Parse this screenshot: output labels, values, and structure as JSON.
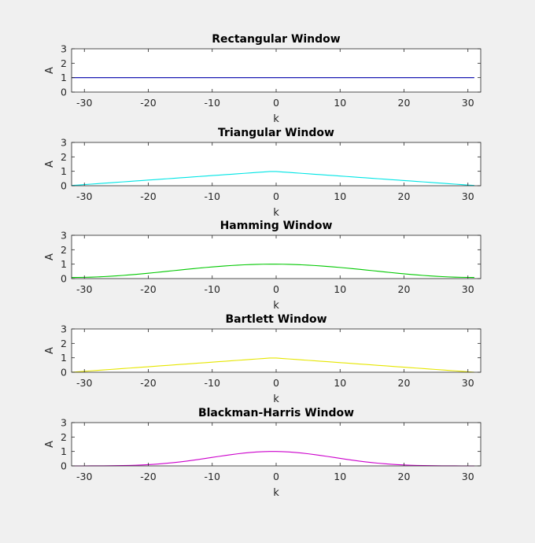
{
  "chart_data": [
    {
      "type": "line",
      "title": "Rectangular Window",
      "xlabel": "k",
      "ylabel": "A",
      "xlim": [
        -32,
        32
      ],
      "ylim": [
        0,
        3
      ],
      "xticks": [
        -30,
        -20,
        -10,
        0,
        10,
        20,
        30
      ],
      "yticks": [
        0,
        1,
        2,
        3
      ],
      "grid": false,
      "color": "#0000aa",
      "window": "rectangular",
      "N": 64
    },
    {
      "type": "line",
      "title": "Triangular Window",
      "xlabel": "k",
      "ylabel": "A",
      "xlim": [
        -32,
        32
      ],
      "ylim": [
        0,
        3
      ],
      "xticks": [
        -30,
        -20,
        -10,
        0,
        10,
        20,
        30
      ],
      "yticks": [
        0,
        1,
        2,
        3
      ],
      "grid": false,
      "color": "#00e5e5",
      "window": "triangular",
      "N": 64
    },
    {
      "type": "line",
      "title": "Hamming Window",
      "xlabel": "k",
      "ylabel": "A",
      "xlim": [
        -32,
        32
      ],
      "ylim": [
        0,
        3
      ],
      "xticks": [
        -30,
        -20,
        -10,
        0,
        10,
        20,
        30
      ],
      "yticks": [
        0,
        1,
        2,
        3
      ],
      "grid": false,
      "color": "#00c800",
      "window": "hamming",
      "N": 64
    },
    {
      "type": "line",
      "title": "Bartlett Window",
      "xlabel": "k",
      "ylabel": "A",
      "xlim": [
        -32,
        32
      ],
      "ylim": [
        0,
        3
      ],
      "xticks": [
        -30,
        -20,
        -10,
        0,
        10,
        20,
        30
      ],
      "yticks": [
        0,
        1,
        2,
        3
      ],
      "grid": false,
      "color": "#e6e600",
      "window": "bartlett",
      "N": 64
    },
    {
      "type": "line",
      "title": "Blackman-Harris Window",
      "xlabel": "k",
      "ylabel": "A",
      "xlim": [
        -32,
        32
      ],
      "ylim": [
        0,
        3
      ],
      "xticks": [
        -30,
        -20,
        -10,
        0,
        10,
        20,
        30
      ],
      "yticks": [
        0,
        1,
        2,
        3
      ],
      "grid": false,
      "color": "#cc00cc",
      "window": "blackman-harris",
      "N": 64
    }
  ]
}
